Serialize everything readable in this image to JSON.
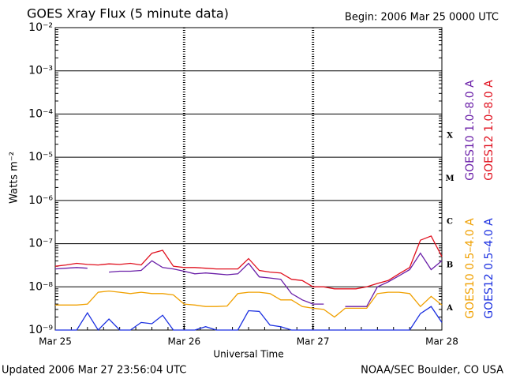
{
  "chart_data": {
    "type": "line",
    "title": "GOES Xray Flux (5 minute data)",
    "begin": "Begin:  2006 Mar 25 0000 UTC",
    "ylabel": "Watts m⁻²",
    "xlabel": "Universal Time",
    "log_y": true,
    "grid": true,
    "flare_classes": [
      "X",
      "M",
      "C",
      "B",
      "A"
    ],
    "xlim": [
      0,
      72
    ],
    "xticks": [
      {
        "value": 0,
        "label": "Mar 25"
      },
      {
        "value": 24,
        "label": "Mar 26"
      },
      {
        "value": 48,
        "label": "Mar 27"
      },
      {
        "value": 72,
        "label": "Mar 28"
      }
    ],
    "ylim": [
      1e-09,
      0.01
    ],
    "yticks": [
      {
        "value": 1e-09,
        "label": "10⁻⁹"
      },
      {
        "value": 1e-08,
        "label": "10⁻⁸"
      },
      {
        "value": 1e-07,
        "label": "10⁻⁷"
      },
      {
        "value": 1e-06,
        "label": "10⁻⁶"
      },
      {
        "value": 1e-05,
        "label": "10⁻⁵"
      },
      {
        "value": 0.0001,
        "label": "10⁻⁴"
      },
      {
        "value": 0.001,
        "label": "10⁻³"
      },
      {
        "value": 0.01,
        "label": "10⁻²"
      }
    ],
    "x": [
      0,
      2,
      4,
      6,
      8,
      10,
      12,
      14,
      16,
      18,
      20,
      22,
      24,
      26,
      28,
      30,
      32,
      34,
      36,
      38,
      40,
      42,
      44,
      46,
      48,
      50,
      52,
      54,
      56,
      58,
      60,
      62,
      64,
      66,
      68,
      70,
      72
    ],
    "series": [
      {
        "name": "GOES10 1.0–8.0 A",
        "color": "#6a1fa8",
        "values": [
          2.6e-08,
          2.7e-08,
          2.8e-08,
          2.7e-08,
          null,
          2.2e-08,
          2.3e-08,
          2.3e-08,
          2.4e-08,
          4e-08,
          2.8e-08,
          2.6e-08,
          2.3e-08,
          2e-08,
          2.1e-08,
          2e-08,
          1.9e-08,
          2e-08,
          3.5e-08,
          1.7e-08,
          1.6e-08,
          1.5e-08,
          7e-09,
          5e-09,
          4e-09,
          4e-09,
          null,
          3.5e-09,
          3.5e-09,
          3.5e-09,
          1e-08,
          1.3e-08,
          1.8e-08,
          2.5e-08,
          6e-08,
          2.5e-08,
          4e-08
        ]
      },
      {
        "name": "GOES12 1.0–8.0 A",
        "color": "#e0101e",
        "values": [
          3e-08,
          3.2e-08,
          3.5e-08,
          3.3e-08,
          3.2e-08,
          3.4e-08,
          3.3e-08,
          3.5e-08,
          3.2e-08,
          6e-08,
          7e-08,
          3e-08,
          2.8e-08,
          2.8e-08,
          2.7e-08,
          2.6e-08,
          2.6e-08,
          2.6e-08,
          4.5e-08,
          2.4e-08,
          2.2e-08,
          2.1e-08,
          1.5e-08,
          1.4e-08,
          1e-08,
          1e-08,
          9e-09,
          9e-09,
          9e-09,
          1e-08,
          1.2e-08,
          1.4e-08,
          2e-08,
          2.8e-08,
          1.2e-07,
          1.5e-07,
          5e-08
        ]
      },
      {
        "name": "GOES10 0.5–4.0 A",
        "color": "#f0a000",
        "values": [
          3.8e-09,
          3.8e-09,
          3.8e-09,
          4e-09,
          7.5e-09,
          8e-09,
          7.5e-09,
          7e-09,
          7.5e-09,
          7e-09,
          7e-09,
          6.5e-09,
          4e-09,
          3.8e-09,
          3.5e-09,
          3.5e-09,
          3.6e-09,
          7e-09,
          7.5e-09,
          7.5e-09,
          7e-09,
          5e-09,
          5e-09,
          3.5e-09,
          3.2e-09,
          3e-09,
          2e-09,
          3.2e-09,
          3.2e-09,
          3.2e-09,
          7e-09,
          7.5e-09,
          7.5e-09,
          7e-09,
          3.5e-09,
          6e-09,
          3.8e-09
        ]
      },
      {
        "name": "GOES12 0.5–4.0 A",
        "color": "#1a2fe0",
        "values": [
          1e-09,
          1e-09,
          1e-09,
          2.5e-09,
          1e-09,
          1.8e-09,
          1e-09,
          1e-09,
          1.5e-09,
          1.4e-09,
          2.2e-09,
          1e-09,
          1e-09,
          1e-09,
          1.2e-09,
          1e-09,
          1e-09,
          1e-09,
          2.8e-09,
          2.7e-09,
          1.3e-09,
          1.2e-09,
          1e-09,
          1e-09,
          1e-09,
          1e-09,
          1e-09,
          1e-09,
          1e-09,
          1e-09,
          1e-09,
          1e-09,
          1e-09,
          1e-09,
          2.4e-09,
          3.5e-09,
          1.5e-09
        ]
      }
    ]
  },
  "footer": {
    "updated": "Updated 2006 Mar 27 23:56:04 UTC",
    "source": "NOAA/SEC Boulder, CO USA"
  }
}
